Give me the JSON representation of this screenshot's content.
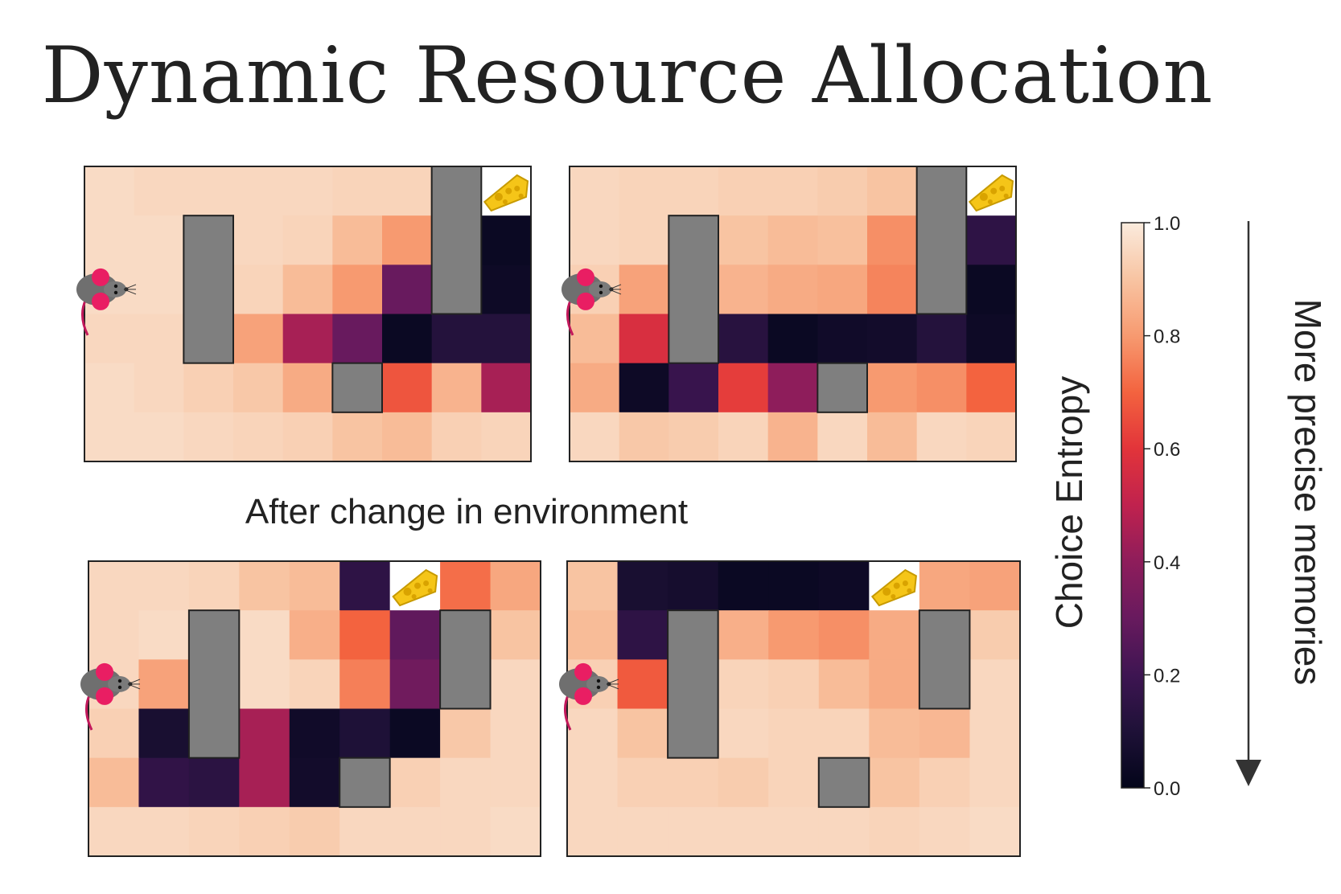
{
  "title": "Dynamic Resource Allocation",
  "subtitle": "After change in environment",
  "colorbar": {
    "label": "Choice Entropy",
    "ticks": [
      "0.0",
      "0.2",
      "0.4",
      "0.6",
      "0.8",
      "1.0"
    ],
    "tick_values": [
      0.0,
      0.2,
      0.4,
      0.6,
      0.8,
      1.0
    ],
    "range": [
      0.0,
      1.0
    ]
  },
  "arrow_label": "More precise memories",
  "colors": {
    "wall": "#7f7f7f",
    "frame": "#222222",
    "goal_bg": "#ffffff"
  },
  "chart_data": [
    {
      "type": "heatmap",
      "panel": "top-left",
      "rows": 6,
      "cols": 9,
      "agent_cell": [
        2,
        0
      ],
      "goal_cell": [
        0,
        8
      ],
      "walls": [
        [
          1,
          2
        ],
        [
          2,
          2
        ],
        [
          3,
          2
        ],
        [
          0,
          7
        ],
        [
          1,
          7
        ],
        [
          2,
          7
        ],
        [
          4,
          5
        ]
      ],
      "values": [
        [
          0.96,
          0.95,
          0.95,
          0.95,
          0.95,
          0.94,
          0.94,
          null,
          null
        ],
        [
          0.96,
          0.96,
          null,
          0.95,
          0.94,
          0.88,
          0.8,
          null,
          0.03
        ],
        [
          0.96,
          0.96,
          null,
          0.94,
          0.88,
          0.8,
          0.3,
          null,
          0.04
        ],
        [
          0.95,
          0.95,
          null,
          0.82,
          0.45,
          0.3,
          0.03,
          0.12,
          0.12
        ],
        [
          0.96,
          0.95,
          0.93,
          0.91,
          0.84,
          null,
          0.67,
          0.86,
          0.45
        ],
        [
          0.96,
          0.96,
          0.95,
          0.94,
          0.93,
          0.9,
          0.88,
          0.93,
          0.94
        ]
      ]
    },
    {
      "type": "heatmap",
      "panel": "top-right",
      "rows": 6,
      "cols": 9,
      "agent_cell": [
        2,
        0
      ],
      "goal_cell": [
        0,
        8
      ],
      "walls": [
        [
          1,
          2
        ],
        [
          2,
          2
        ],
        [
          3,
          2
        ],
        [
          0,
          7
        ],
        [
          1,
          7
        ],
        [
          2,
          7
        ],
        [
          4,
          5
        ]
      ],
      "values": [
        [
          0.95,
          0.94,
          0.94,
          0.93,
          0.93,
          0.92,
          0.9,
          null,
          null
        ],
        [
          0.95,
          0.94,
          null,
          0.9,
          0.88,
          0.89,
          0.78,
          null,
          0.15
        ],
        [
          0.93,
          0.82,
          null,
          0.86,
          0.84,
          0.83,
          0.76,
          null,
          0.03
        ],
        [
          0.88,
          0.57,
          null,
          0.13,
          0.03,
          0.05,
          0.06,
          0.12,
          0.04
        ],
        [
          0.84,
          0.04,
          0.18,
          0.62,
          0.4,
          null,
          0.8,
          0.78,
          0.7
        ],
        [
          0.95,
          0.91,
          0.92,
          0.94,
          0.86,
          0.95,
          0.88,
          0.95,
          0.94
        ]
      ]
    },
    {
      "type": "heatmap",
      "panel": "bottom-left",
      "rows": 6,
      "cols": 9,
      "agent_cell": [
        2,
        0
      ],
      "goal_cell": [
        0,
        6
      ],
      "walls": [
        [
          1,
          2
        ],
        [
          2,
          2
        ],
        [
          3,
          2
        ],
        [
          1,
          7
        ],
        [
          2,
          7
        ],
        [
          4,
          5
        ]
      ],
      "values": [
        [
          0.95,
          0.95,
          0.94,
          0.9,
          0.88,
          0.15,
          null,
          0.72,
          0.83
        ],
        [
          0.95,
          0.96,
          null,
          0.96,
          0.85,
          0.7,
          0.28,
          null,
          0.9
        ],
        [
          0.95,
          0.82,
          null,
          0.96,
          0.94,
          0.75,
          0.32,
          null,
          0.95
        ],
        [
          0.93,
          0.08,
          null,
          0.45,
          0.05,
          0.1,
          0.03,
          0.91,
          0.95
        ],
        [
          0.88,
          0.16,
          0.14,
          0.45,
          0.06,
          null,
          0.93,
          0.95,
          0.95
        ],
        [
          0.95,
          0.95,
          0.94,
          0.93,
          0.92,
          0.95,
          0.95,
          0.95,
          0.96
        ]
      ]
    },
    {
      "type": "heatmap",
      "panel": "bottom-right",
      "rows": 6,
      "cols": 9,
      "agent_cell": [
        2,
        0
      ],
      "goal_cell": [
        0,
        6
      ],
      "walls": [
        [
          1,
          2
        ],
        [
          2,
          2
        ],
        [
          3,
          2
        ],
        [
          1,
          7
        ],
        [
          2,
          7
        ],
        [
          4,
          5
        ]
      ],
      "values": [
        [
          0.9,
          0.08,
          0.07,
          0.03,
          0.03,
          0.04,
          null,
          0.83,
          0.82
        ],
        [
          0.88,
          0.15,
          null,
          0.85,
          0.8,
          0.78,
          0.84,
          null,
          0.92
        ],
        [
          0.93,
          0.68,
          null,
          0.94,
          0.93,
          0.88,
          0.84,
          null,
          0.95
        ],
        [
          0.95,
          0.9,
          null,
          0.95,
          0.94,
          0.94,
          0.88,
          0.87,
          0.95
        ],
        [
          0.95,
          0.93,
          0.93,
          0.92,
          0.94,
          null,
          0.9,
          0.93,
          0.95
        ],
        [
          0.95,
          0.95,
          0.95,
          0.95,
          0.95,
          0.95,
          0.94,
          0.95,
          0.96
        ]
      ]
    }
  ]
}
